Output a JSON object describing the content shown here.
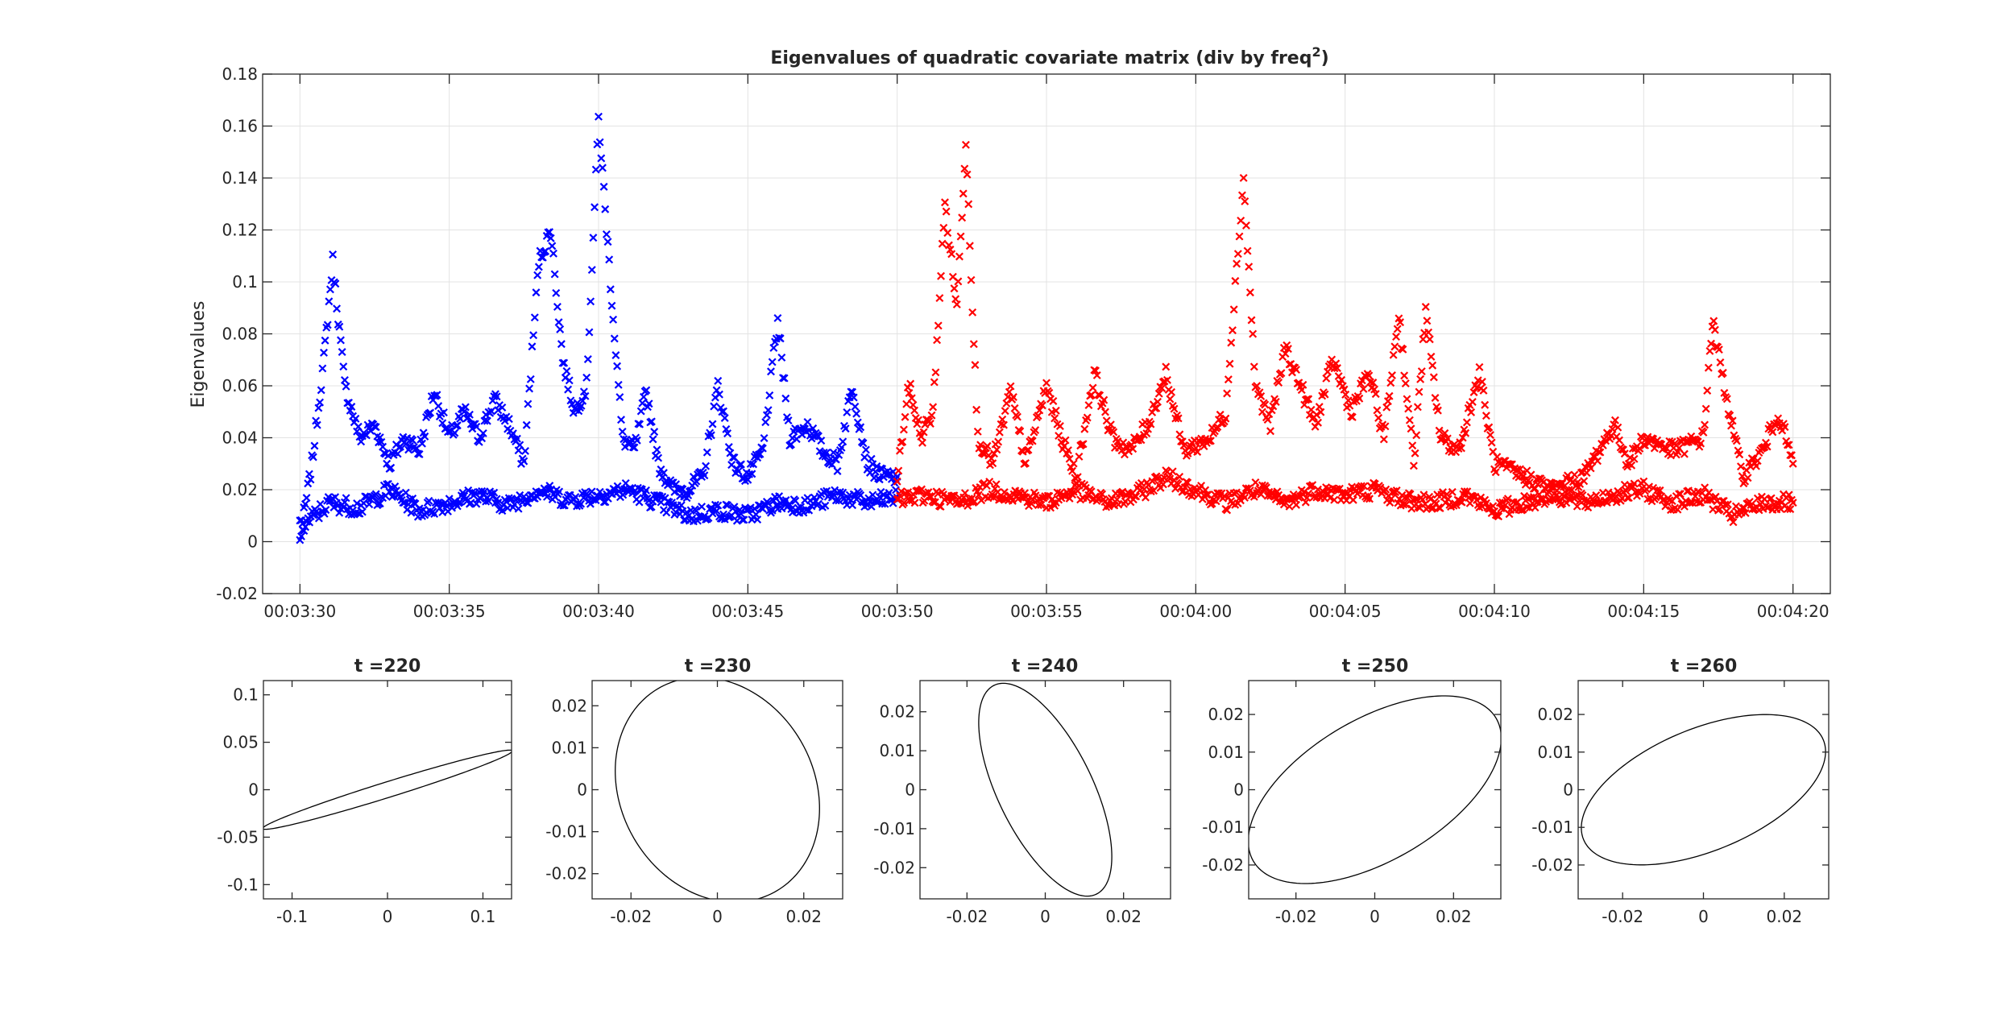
{
  "chart_data": [
    {
      "type": "scatter",
      "title": "Eigenvalues of quadratic covariate matrix (div by freq",
      "title_superscript": "2",
      "title_suffix": ")",
      "xlabel": "",
      "ylabel": "Eigenvalues",
      "marker": "x",
      "grid": true,
      "x_ticks": [
        "00:03:30",
        "00:03:35",
        "00:03:40",
        "00:03:45",
        "00:03:50",
        "00:03:55",
        "00:04:00",
        "00:04:05",
        "00:04:10",
        "00:04:15",
        "00:04:20"
      ],
      "xlim": [
        "00:03:28.75",
        "00:04:21.25"
      ],
      "y_ticks": [
        -0.02,
        0,
        0.02,
        0.04,
        0.06,
        0.08,
        0.1,
        0.12,
        0.14,
        0.16,
        0.18
      ],
      "ylim": [
        -0.02,
        0.18
      ],
      "colors": {
        "before": "#0000ff",
        "after": "#ff0000"
      },
      "series": [
        {
          "key": "large_eigenvalue",
          "points": [
            [
              "00:03:30",
              0.0
            ],
            [
              "00:03:30.4",
              0.03
            ],
            [
              "00:03:30.8",
              0.07
            ],
            [
              "00:03:31.1",
              0.108
            ],
            [
              "00:03:31.5",
              0.06
            ],
            [
              "00:03:32",
              0.04
            ],
            [
              "00:03:32.5",
              0.045
            ],
            [
              "00:03:33",
              0.03
            ],
            [
              "00:03:33.5",
              0.04
            ],
            [
              "00:03:34",
              0.035
            ],
            [
              "00:03:34.5",
              0.058
            ],
            [
              "00:03:35",
              0.04
            ],
            [
              "00:03:35.5",
              0.05
            ],
            [
              "00:03:36",
              0.04
            ],
            [
              "00:03:36.5",
              0.055
            ],
            [
              "00:03:37",
              0.045
            ],
            [
              "00:03:37.5",
              0.03
            ],
            [
              "00:03:38",
              0.108
            ],
            [
              "00:03:38.4",
              0.12
            ],
            [
              "00:03:38.8",
              0.07
            ],
            [
              "00:03:39.2",
              0.05
            ],
            [
              "00:03:39.6",
              0.06
            ],
            [
              "00:03:40",
              0.163
            ],
            [
              "00:03:40.4",
              0.1
            ],
            [
              "00:03:40.8",
              0.04
            ],
            [
              "00:03:41.2",
              0.035
            ],
            [
              "00:03:41.6",
              0.058
            ],
            [
              "00:03:42",
              0.03
            ],
            [
              "00:03:42.5",
              0.02
            ],
            [
              "00:03:43",
              0.02
            ],
            [
              "00:03:43.5",
              0.025
            ],
            [
              "00:03:44",
              0.06
            ],
            [
              "00:03:44.5",
              0.03
            ],
            [
              "00:03:45",
              0.025
            ],
            [
              "00:03:45.5",
              0.035
            ],
            [
              "00:03:46",
              0.085
            ],
            [
              "00:03:46.4",
              0.04
            ],
            [
              "00:03:47",
              0.045
            ],
            [
              "00:03:47.5",
              0.035
            ],
            [
              "00:03:48",
              0.03
            ],
            [
              "00:03:48.5",
              0.06
            ],
            [
              "00:03:49",
              0.03
            ],
            [
              "00:03:49.5",
              0.025
            ],
            [
              "00:03:50",
              0.025
            ]
          ]
        },
        {
          "key": "small_eigenvalue",
          "points": [
            [
              "00:03:30",
              0.005
            ],
            [
              "00:03:31",
              0.015
            ],
            [
              "00:03:32",
              0.013
            ],
            [
              "00:03:33",
              0.02
            ],
            [
              "00:03:34",
              0.012
            ],
            [
              "00:03:35",
              0.015
            ],
            [
              "00:03:36",
              0.018
            ],
            [
              "00:03:37",
              0.014
            ],
            [
              "00:03:38",
              0.02
            ],
            [
              "00:03:39",
              0.016
            ],
            [
              "00:03:40",
              0.018
            ],
            [
              "00:03:41",
              0.02
            ],
            [
              "00:03:42",
              0.015
            ],
            [
              "00:03:43",
              0.01
            ],
            [
              "00:03:44",
              0.012
            ],
            [
              "00:03:45",
              0.01
            ],
            [
              "00:03:46",
              0.015
            ],
            [
              "00:03:47",
              0.014
            ],
            [
              "00:03:48",
              0.018
            ],
            [
              "00:03:49",
              0.015
            ],
            [
              "00:03:50",
              0.017
            ]
          ]
        },
        {
          "key": "large_eigenvalue_after",
          "points": [
            [
              "00:03:50",
              0.025
            ],
            [
              "00:03:50.4",
              0.06
            ],
            [
              "00:03:50.8",
              0.04
            ],
            [
              "00:03:51.2",
              0.05
            ],
            [
              "00:03:51.6",
              0.13
            ],
            [
              "00:03:52",
              0.09
            ],
            [
              "00:03:52.3",
              0.155
            ],
            [
              "00:03:52.7",
              0.04
            ],
            [
              "00:03:53.2",
              0.03
            ],
            [
              "00:03:53.8",
              0.058
            ],
            [
              "00:03:54.3",
              0.03
            ],
            [
              "00:03:55",
              0.06
            ],
            [
              "00:03:55.5",
              0.04
            ],
            [
              "00:03:56",
              0.025
            ],
            [
              "00:03:56.6",
              0.065
            ],
            [
              "00:03:57.2",
              0.04
            ],
            [
              "00:03:57.8",
              0.035
            ],
            [
              "00:03:58.4",
              0.045
            ],
            [
              "00:03:59",
              0.065
            ],
            [
              "00:03:59.6",
              0.035
            ],
            [
              "00:04:00.5",
              0.04
            ],
            [
              "00:04:01",
              0.05
            ],
            [
              "00:04:01.6",
              0.14
            ],
            [
              "00:04:02",
              0.06
            ],
            [
              "00:04:02.5",
              0.045
            ],
            [
              "00:04:03",
              0.075
            ],
            [
              "00:04:03.5",
              0.06
            ],
            [
              "00:04:04",
              0.045
            ],
            [
              "00:04:04.6",
              0.07
            ],
            [
              "00:04:05.2",
              0.05
            ],
            [
              "00:04:05.8",
              0.065
            ],
            [
              "00:04:06.3",
              0.04
            ],
            [
              "00:04:06.8",
              0.088
            ],
            [
              "00:04:07.3",
              0.03
            ],
            [
              "00:04:07.7",
              0.088
            ],
            [
              "00:04:08.2",
              0.04
            ],
            [
              "00:04:08.8",
              0.035
            ],
            [
              "00:04:09.5",
              0.065
            ],
            [
              "00:04:10",
              0.03
            ],
            [
              "00:04:11",
              0.025
            ],
            [
              "00:04:12",
              0.02
            ],
            [
              "00:04:13",
              0.025
            ],
            [
              "00:04:14",
              0.045
            ],
            [
              "00:04:14.5",
              0.03
            ],
            [
              "00:04:15",
              0.04
            ],
            [
              "00:04:16",
              0.035
            ],
            [
              "00:04:17",
              0.04
            ],
            [
              "00:04:17.3",
              0.085
            ],
            [
              "00:04:17.7",
              0.06
            ],
            [
              "00:04:18.3",
              0.025
            ],
            [
              "00:04:19",
              0.035
            ],
            [
              "00:04:19.5",
              0.05
            ],
            [
              "00:04:20",
              0.03
            ]
          ]
        },
        {
          "key": "small_eigenvalue_after",
          "points": [
            [
              "00:03:50",
              0.016
            ],
            [
              "00:03:51",
              0.018
            ],
            [
              "00:03:52",
              0.015
            ],
            [
              "00:03:53",
              0.02
            ],
            [
              "00:03:54",
              0.018
            ],
            [
              "00:03:55",
              0.015
            ],
            [
              "00:03:56",
              0.02
            ],
            [
              "00:03:57",
              0.015
            ],
            [
              "00:03:58",
              0.018
            ],
            [
              "00:03:59",
              0.025
            ],
            [
              "00:04:00",
              0.02
            ],
            [
              "00:04:01",
              0.015
            ],
            [
              "00:04:02",
              0.02
            ],
            [
              "00:04:03",
              0.015
            ],
            [
              "00:04:04",
              0.02
            ],
            [
              "00:04:05",
              0.018
            ],
            [
              "00:04:06",
              0.02
            ],
            [
              "00:04:07",
              0.016
            ],
            [
              "00:04:08",
              0.015
            ],
            [
              "00:04:09",
              0.018
            ],
            [
              "00:04:10",
              0.012
            ],
            [
              "00:04:11",
              0.015
            ],
            [
              "00:04:12",
              0.018
            ],
            [
              "00:04:13",
              0.015
            ],
            [
              "00:04:14",
              0.018
            ],
            [
              "00:04:15",
              0.02
            ],
            [
              "00:04:16",
              0.015
            ],
            [
              "00:04:17",
              0.018
            ],
            [
              "00:04:18",
              0.01
            ],
            [
              "00:04:19",
              0.015
            ],
            [
              "00:04:20",
              0.015
            ]
          ]
        }
      ]
    },
    {
      "type": "ellipse",
      "title": "t =220",
      "xlim": [
        -0.13,
        0.13
      ],
      "ylim": [
        -0.115,
        0.115
      ],
      "x_ticks": [
        -0.1,
        0,
        0.1
      ],
      "y_ticks": [
        -0.1,
        -0.05,
        0,
        0.05,
        0.1
      ],
      "ellipse": {
        "cx": 0,
        "cy": 0,
        "a": 0.137,
        "b": 0.0082,
        "angle_deg": 17.4
      }
    },
    {
      "type": "ellipse",
      "title": "t =230",
      "xlim": [
        -0.029,
        0.029
      ],
      "ylim": [
        -0.026,
        0.026
      ],
      "x_ticks": [
        -0.02,
        0,
        0.02
      ],
      "y_ticks": [
        -0.02,
        -0.01,
        0,
        0.01,
        0.02
      ],
      "ellipse": {
        "cx": 0,
        "cy": 0,
        "a": 0.02775,
        "b": 0.0225,
        "angle_deg": -63.4
      }
    },
    {
      "type": "ellipse",
      "title": "t =240",
      "xlim": [
        -0.032,
        0.032
      ],
      "ylim": [
        -0.028,
        0.028
      ],
      "x_ticks": [
        -0.02,
        0,
        0.02
      ],
      "y_ticks": [
        -0.02,
        -0.01,
        0,
        0.01,
        0.02
      ],
      "ellipse": {
        "cx": 0,
        "cy": 0,
        "a": 0.0298,
        "b": 0.0121,
        "angle_deg": -64
      }
    },
    {
      "type": "ellipse",
      "title": "t =250",
      "xlim": [
        -0.032,
        0.032
      ],
      "ylim": [
        -0.029,
        0.029
      ],
      "x_ticks": [
        -0.02,
        0,
        0.02
      ],
      "y_ticks": [
        -0.02,
        -0.01,
        0,
        0.01,
        0.02
      ],
      "ellipse": {
        "cx": 0,
        "cy": 0,
        "a": 0.0362,
        "b": 0.0185,
        "angle_deg": 32.5
      }
    },
    {
      "type": "ellipse",
      "title": "t =260",
      "xlim": [
        -0.031,
        0.031
      ],
      "ylim": [
        -0.029,
        0.029
      ],
      "x_ticks": [
        -0.02,
        0,
        0.02
      ],
      "y_ticks": [
        -0.02,
        -0.01,
        0,
        0.01,
        0.02
      ],
      "ellipse": {
        "cx": 0,
        "cy": 0,
        "a": 0.0325,
        "b": 0.016,
        "angle_deg": 25
      }
    }
  ]
}
